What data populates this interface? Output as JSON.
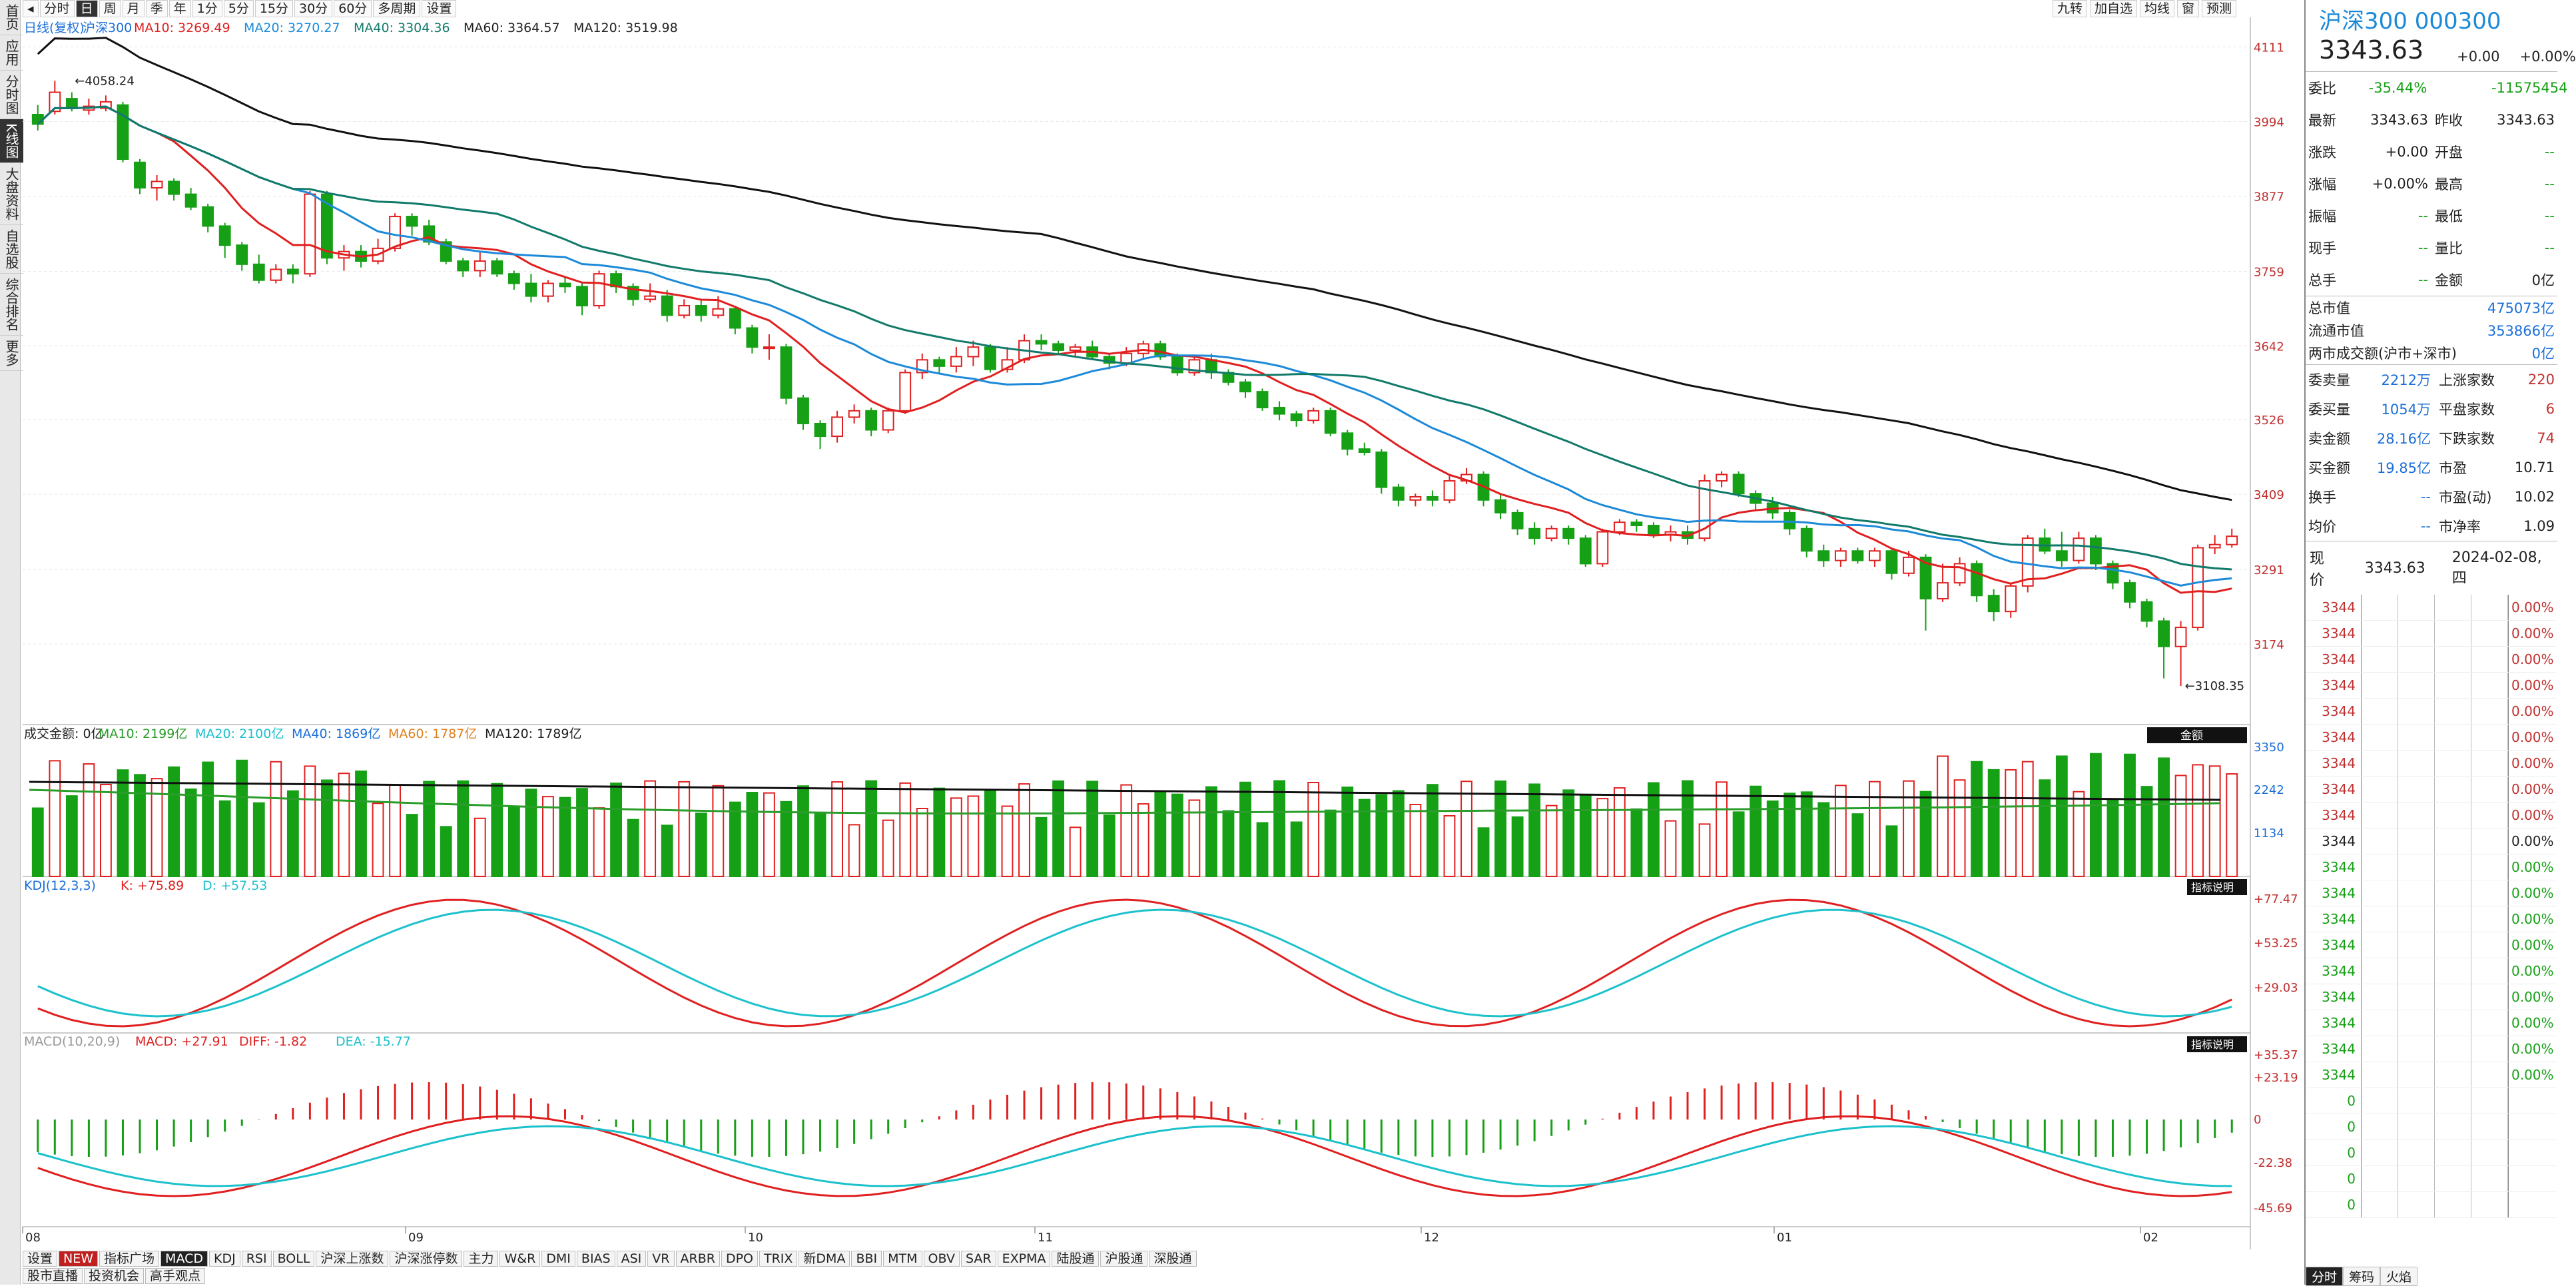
{
  "sidebar": [
    "首页",
    "应用",
    "分时图",
    "K线图",
    "大盘资料",
    "自选股",
    "综合排名",
    "更多"
  ],
  "toolbar": {
    "periods": [
      "分时",
      "日",
      "周",
      "月",
      "季",
      "年",
      "1分",
      "5分",
      "15分",
      "30分",
      "60分",
      "多周期",
      "设置"
    ],
    "active": "日",
    "right_buttons": [
      "九转",
      "加自选",
      "均线",
      "窗",
      "预测"
    ]
  },
  "price_legend": {
    "title": "日线(复权)",
    "name": "沪深300",
    "ma10": "MA10: 3269.49",
    "ma20": "MA20: 3270.27",
    "ma40": "MA40: 3304.36",
    "ma60": "MA60: 3364.57",
    "ma120": "MA120: 3519.98"
  },
  "price_axis": [
    "4111",
    "3994",
    "3877",
    "3759",
    "3642",
    "3526",
    "3409",
    "3291",
    "3174"
  ],
  "price_marks": {
    "high": "4058.24",
    "low": "3108.35"
  },
  "vol_legend": {
    "title": "成交金额: 0亿",
    "ma10": "MA10: 2199亿",
    "ma20": "MA20: 2100亿",
    "ma40": "MA40: 1869亿",
    "ma60": "MA60: 1787亿",
    "ma120": "MA120: 1789亿",
    "tag": "金额"
  },
  "vol_axis": [
    "3350",
    "2242",
    "1134"
  ],
  "kdj_legend": {
    "title": "KDJ(12,3,3)",
    "k": "K: +75.89",
    "d": "D: +57.53",
    "tag": "指标说明"
  },
  "kdj_axis": [
    "+77.47",
    "+53.25",
    "+29.03"
  ],
  "macd_legend": {
    "title": "MACD(10,20,9)",
    "macd": "MACD: +27.91",
    "diff": "DIFF: -1.82",
    "dea": "DEA: -15.77",
    "tag": "指标说明"
  },
  "macd_axis": [
    "+35.37",
    "+23.19",
    "0",
    "-22.38",
    "-45.69"
  ],
  "x_labels": [
    "08",
    "09",
    "10",
    "11",
    "12",
    "01",
    "02"
  ],
  "bottom_tabs": [
    "设置",
    "NEW",
    "指标广场",
    "MACD",
    "KDJ",
    "RSI",
    "BOLL",
    "沪深上涨数",
    "沪深涨停数",
    "主力",
    "W&R",
    "DMI",
    "BIAS",
    "ASI",
    "VR",
    "ARBR",
    "DPO",
    "TRIX",
    "新DMA",
    "BBI",
    "MTM",
    "OBV",
    "SAR",
    "EXPMA",
    "陆股通",
    "沪股通",
    "深股通"
  ],
  "bottom_active": "MACD",
  "bottom_tabs2": [
    "股市直播",
    "投资机会",
    "高手观点"
  ],
  "quote": {
    "title": "沪深300 000300",
    "price": "3343.63",
    "change": "+0.00",
    "pct": "+0.00%",
    "rows1": [
      [
        "委比",
        "-35.44%",
        "",
        "-11575454"
      ],
      [
        "最新",
        "3343.63",
        "昨收",
        "3343.63"
      ],
      [
        "涨跌",
        "+0.00",
        "开盘",
        "--"
      ],
      [
        "涨幅",
        "+0.00%",
        "最高",
        "--"
      ],
      [
        "振幅",
        "--",
        "最低",
        "--"
      ],
      [
        "现手",
        "--",
        "量比",
        "--"
      ],
      [
        "总手",
        "--",
        "金额",
        "0亿"
      ]
    ],
    "rows2": [
      [
        "总市值",
        "475073亿"
      ],
      [
        "流通市值",
        "353866亿"
      ],
      [
        "两市成交额(沪市+深市)",
        "0亿"
      ]
    ],
    "rows3": [
      [
        "委卖量",
        "2212万",
        "上涨家数",
        "220"
      ],
      [
        "委买量",
        "1054万",
        "平盘家数",
        "6"
      ],
      [
        "卖金额",
        "28.16亿",
        "下跌家数",
        "74"
      ],
      [
        "买金额",
        "19.85亿",
        "市盈",
        "10.71"
      ],
      [
        "换手",
        "--",
        "市盈(动)",
        "10.02"
      ],
      [
        "均价",
        "--",
        "市净率",
        "1.09"
      ]
    ],
    "now_label": "现价",
    "now_price": "3343.63",
    "date": "2024-02-08,四",
    "ladder_price": "3344",
    "ladder_pct": "0.00%",
    "bottom_tabs": [
      "分时",
      "筹码",
      "火焰"
    ]
  },
  "chart_data": {
    "type": "candlestick",
    "ylim": [
      3060,
      4120
    ],
    "candles": [
      [
        4005,
        3990,
        4020,
        3980
      ],
      [
        4010,
        4040,
        4058,
        4005
      ],
      [
        4030,
        4015,
        4040,
        4010
      ],
      [
        4012,
        4018,
        4030,
        4005
      ],
      [
        4015,
        4025,
        4035,
        4010
      ],
      [
        4020,
        3935,
        4025,
        3930
      ],
      [
        3930,
        3890,
        3935,
        3880
      ],
      [
        3890,
        3900,
        3910,
        3870
      ],
      [
        3900,
        3880,
        3905,
        3870
      ],
      [
        3880,
        3860,
        3890,
        3855
      ],
      [
        3860,
        3830,
        3865,
        3820
      ],
      [
        3830,
        3800,
        3835,
        3780
      ],
      [
        3800,
        3770,
        3805,
        3760
      ],
      [
        3770,
        3745,
        3785,
        3740
      ],
      [
        3745,
        3762,
        3770,
        3740
      ],
      [
        3762,
        3755,
        3770,
        3740
      ],
      [
        3755,
        3880,
        3885,
        3750
      ],
      [
        3880,
        3780,
        3885,
        3770
      ],
      [
        3780,
        3790,
        3800,
        3760
      ],
      [
        3790,
        3775,
        3800,
        3765
      ],
      [
        3775,
        3795,
        3810,
        3770
      ],
      [
        3795,
        3845,
        3850,
        3790
      ],
      [
        3845,
        3830,
        3850,
        3815
      ],
      [
        3830,
        3805,
        3840,
        3800
      ],
      [
        3805,
        3775,
        3810,
        3770
      ],
      [
        3775,
        3760,
        3780,
        3750
      ],
      [
        3760,
        3775,
        3790,
        3750
      ],
      [
        3775,
        3755,
        3780,
        3750
      ],
      [
        3755,
        3740,
        3760,
        3730
      ],
      [
        3740,
        3720,
        3755,
        3710
      ],
      [
        3720,
        3740,
        3745,
        3710
      ],
      [
        3740,
        3735,
        3750,
        3725
      ],
      [
        3735,
        3705,
        3740,
        3690
      ],
      [
        3705,
        3755,
        3760,
        3700
      ],
      [
        3755,
        3735,
        3760,
        3725
      ],
      [
        3735,
        3715,
        3740,
        3705
      ],
      [
        3715,
        3720,
        3740,
        3710
      ],
      [
        3720,
        3690,
        3730,
        3680
      ],
      [
        3690,
        3705,
        3715,
        3685
      ],
      [
        3705,
        3690,
        3715,
        3680
      ],
      [
        3690,
        3700,
        3720,
        3685
      ],
      [
        3700,
        3670,
        3705,
        3660
      ],
      [
        3670,
        3640,
        3675,
        3630
      ],
      [
        3640,
        3640,
        3660,
        3620
      ],
      [
        3640,
        3560,
        3645,
        3550
      ],
      [
        3560,
        3520,
        3565,
        3510
      ],
      [
        3520,
        3500,
        3525,
        3480
      ],
      [
        3500,
        3530,
        3540,
        3490
      ],
      [
        3530,
        3540,
        3550,
        3520
      ],
      [
        3540,
        3510,
        3545,
        3500
      ],
      [
        3510,
        3540,
        3545,
        3505
      ],
      [
        3540,
        3600,
        3605,
        3535
      ],
      [
        3600,
        3620,
        3630,
        3590
      ],
      [
        3620,
        3610,
        3625,
        3600
      ],
      [
        3610,
        3625,
        3640,
        3600
      ],
      [
        3625,
        3640,
        3650,
        3610
      ],
      [
        3640,
        3605,
        3645,
        3600
      ],
      [
        3605,
        3620,
        3640,
        3600
      ],
      [
        3620,
        3650,
        3660,
        3615
      ],
      [
        3650,
        3645,
        3660,
        3635
      ],
      [
        3645,
        3635,
        3650,
        3630
      ],
      [
        3635,
        3640,
        3645,
        3625
      ],
      [
        3640,
        3625,
        3650,
        3620
      ],
      [
        3625,
        3615,
        3630,
        3605
      ],
      [
        3615,
        3630,
        3640,
        3610
      ],
      [
        3630,
        3645,
        3650,
        3620
      ],
      [
        3645,
        3625,
        3650,
        3620
      ],
      [
        3625,
        3600,
        3630,
        3595
      ],
      [
        3600,
        3620,
        3625,
        3595
      ],
      [
        3620,
        3600,
        3630,
        3590
      ],
      [
        3600,
        3585,
        3605,
        3580
      ],
      [
        3585,
        3570,
        3590,
        3560
      ],
      [
        3570,
        3545,
        3575,
        3540
      ],
      [
        3545,
        3535,
        3555,
        3525
      ],
      [
        3535,
        3525,
        3540,
        3515
      ],
      [
        3525,
        3540,
        3545,
        3520
      ],
      [
        3540,
        3505,
        3545,
        3500
      ],
      [
        3505,
        3480,
        3510,
        3470
      ],
      [
        3480,
        3475,
        3490,
        3470
      ],
      [
        3475,
        3420,
        3480,
        3410
      ],
      [
        3420,
        3400,
        3425,
        3390
      ],
      [
        3400,
        3405,
        3410,
        3390
      ],
      [
        3405,
        3400,
        3415,
        3390
      ],
      [
        3400,
        3430,
        3440,
        3395
      ],
      [
        3430,
        3440,
        3450,
        3425
      ],
      [
        3440,
        3400,
        3445,
        3390
      ],
      [
        3400,
        3380,
        3410,
        3370
      ],
      [
        3380,
        3355,
        3385,
        3345
      ],
      [
        3355,
        3340,
        3365,
        3330
      ],
      [
        3340,
        3355,
        3360,
        3335
      ],
      [
        3355,
        3340,
        3360,
        3330
      ],
      [
        3340,
        3300,
        3345,
        3295
      ],
      [
        3300,
        3350,
        3355,
        3295
      ],
      [
        3350,
        3365,
        3370,
        3345
      ],
      [
        3365,
        3360,
        3370,
        3350
      ],
      [
        3360,
        3345,
        3365,
        3340
      ],
      [
        3345,
        3350,
        3360,
        3335
      ],
      [
        3350,
        3340,
        3360,
        3330
      ],
      [
        3340,
        3430,
        3440,
        3335
      ],
      [
        3430,
        3440,
        3445,
        3420
      ],
      [
        3440,
        3410,
        3445,
        3405
      ],
      [
        3410,
        3395,
        3415,
        3385
      ],
      [
        3395,
        3380,
        3405,
        3370
      ],
      [
        3380,
        3355,
        3385,
        3345
      ],
      [
        3355,
        3320,
        3360,
        3310
      ],
      [
        3320,
        3305,
        3330,
        3295
      ],
      [
        3305,
        3320,
        3325,
        3295
      ],
      [
        3320,
        3305,
        3325,
        3300
      ],
      [
        3305,
        3320,
        3325,
        3295
      ],
      [
        3320,
        3285,
        3325,
        3275
      ],
      [
        3285,
        3310,
        3320,
        3280
      ],
      [
        3310,
        3245,
        3315,
        3195
      ],
      [
        3245,
        3270,
        3300,
        3240
      ],
      [
        3270,
        3300,
        3310,
        3265
      ],
      [
        3300,
        3250,
        3305,
        3240
      ],
      [
        3250,
        3225,
        3260,
        3210
      ],
      [
        3225,
        3265,
        3270,
        3215
      ],
      [
        3265,
        3340,
        3345,
        3255
      ],
      [
        3340,
        3320,
        3355,
        3315
      ],
      [
        3320,
        3305,
        3350,
        3295
      ],
      [
        3305,
        3340,
        3350,
        3300
      ],
      [
        3340,
        3300,
        3345,
        3290
      ],
      [
        3300,
        3270,
        3305,
        3260
      ],
      [
        3270,
        3240,
        3275,
        3230
      ],
      [
        3240,
        3210,
        3245,
        3200
      ],
      [
        3210,
        3170,
        3215,
        3120
      ],
      [
        3170,
        3200,
        3210,
        3108
      ],
      [
        3200,
        3325,
        3330,
        3195
      ],
      [
        3325,
        3330,
        3345,
        3315
      ],
      [
        3330,
        3343,
        3355,
        3325
      ]
    ]
  }
}
